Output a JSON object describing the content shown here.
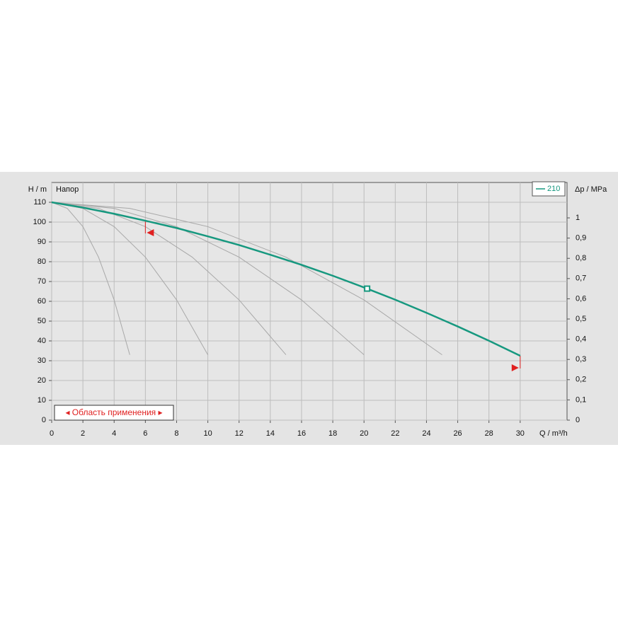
{
  "chart_data": {
    "type": "line",
    "y_label": "H / m",
    "y_title": "Напор",
    "y2_label": "Δp / MPa",
    "x_label": "Q / m³/h",
    "annotation": "◂ Область применения ▸",
    "xlim": [
      0,
      33
    ],
    "xticks": [
      0,
      2,
      4,
      6,
      8,
      10,
      12,
      14,
      16,
      18,
      20,
      22,
      24,
      26,
      28,
      30
    ],
    "ylim": [
      0,
      120
    ],
    "yticks": [
      0,
      10,
      20,
      30,
      40,
      50,
      60,
      70,
      80,
      90,
      100,
      110
    ],
    "y2lim": [
      0,
      1.175
    ],
    "y2ticks": [
      0,
      {
        "value": 0.1,
        "label": "0,1"
      },
      {
        "value": 0.2,
        "label": "0,2"
      },
      {
        "value": 0.3,
        "label": "0,3"
      },
      {
        "value": 0.4,
        "label": "0,4"
      },
      {
        "value": 0.5,
        "label": "0,5"
      },
      {
        "value": 0.6,
        "label": "0,6"
      },
      {
        "value": 0.7,
        "label": "0,7"
      },
      {
        "value": 0.8,
        "label": "0,8"
      },
      {
        "value": 0.9,
        "label": "0,9"
      },
      1
    ],
    "grid": true,
    "legend": "top-right",
    "series": [
      {
        "name": "210",
        "color": "#16987f",
        "x": [
          0,
          2,
          4,
          6,
          8,
          10,
          12,
          14,
          16,
          18,
          20,
          22,
          24,
          26,
          28,
          30
        ],
        "values": [
          110,
          107.3,
          104.2,
          100.7,
          97.0,
          92.8,
          88.4,
          83.5,
          78.4,
          72.9,
          67.0,
          60.8,
          54.2,
          47.3,
          40.1,
          32.5
        ]
      }
    ],
    "operating_point": {
      "x": 20.2,
      "value": 66.4
    },
    "system_curves": [
      {
        "x": [
          0,
          1,
          2,
          3,
          4,
          5
        ],
        "values": [
          110,
          106.9,
          97.7,
          82.3,
          60.7,
          33
        ]
      },
      {
        "x": [
          0,
          2,
          4,
          6,
          8,
          10
        ],
        "values": [
          110,
          106.9,
          97.7,
          82.3,
          60.7,
          33
        ]
      },
      {
        "x": [
          0,
          3,
          6,
          9,
          12,
          15
        ],
        "values": [
          110,
          106.9,
          97.7,
          82.3,
          60.7,
          33
        ]
      },
      {
        "x": [
          0,
          4,
          8,
          12,
          16,
          20
        ],
        "values": [
          110,
          106.9,
          97.7,
          82.3,
          60.7,
          33
        ]
      },
      {
        "x": [
          0,
          5,
          10,
          15,
          20,
          25
        ],
        "values": [
          110,
          106.9,
          97.7,
          82.3,
          60.7,
          33
        ]
      }
    ]
  }
}
